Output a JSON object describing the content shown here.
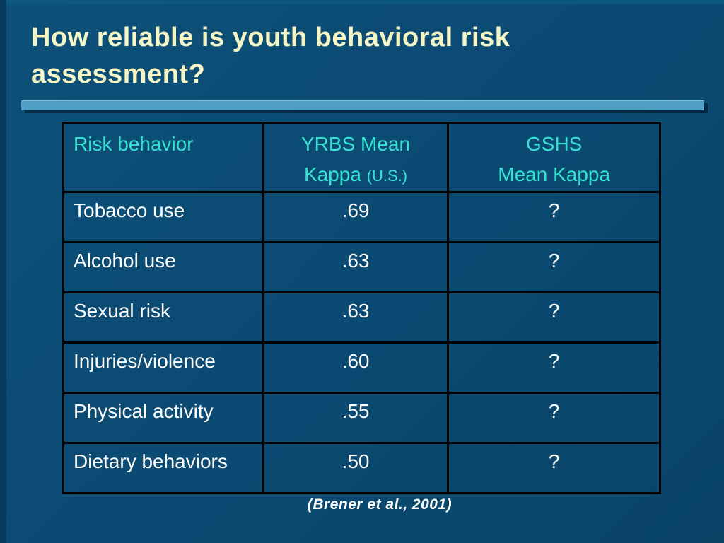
{
  "slide": {
    "title": "How reliable is youth behavioral risk assessment?",
    "citation": "(Brener et al., 2001)"
  },
  "table": {
    "header": {
      "risk_behavior": "Risk behavior",
      "yrbs_line1": "YRBS Mean",
      "yrbs_line2": "Kappa",
      "yrbs_unit": "(U.S.)",
      "gshs_line1": "GSHS",
      "gshs_line2": "Mean Kappa"
    },
    "rows": [
      {
        "behavior": "Tobacco use",
        "yrbs_kappa": ".69",
        "gshs_kappa": "?"
      },
      {
        "behavior": "Alcohol use",
        "yrbs_kappa": ".63",
        "gshs_kappa": "?"
      },
      {
        "behavior": "Sexual risk",
        "yrbs_kappa": ".63",
        "gshs_kappa": "?"
      },
      {
        "behavior": "Injuries/violence",
        "yrbs_kappa": ".60",
        "gshs_kappa": "?"
      },
      {
        "behavior": "Physical activity",
        "yrbs_kappa": ".55",
        "gshs_kappa": "?"
      },
      {
        "behavior": "Dietary behaviors",
        "yrbs_kappa": ".50",
        "gshs_kappa": "?"
      }
    ]
  },
  "colors": {
    "background": "#0B4A72",
    "title_text": "#F5F5C6",
    "header_text": "#35E2D2",
    "body_text": "#FFFFFF",
    "divider_bar": "#4E9FC2",
    "table_border": "#000000"
  }
}
